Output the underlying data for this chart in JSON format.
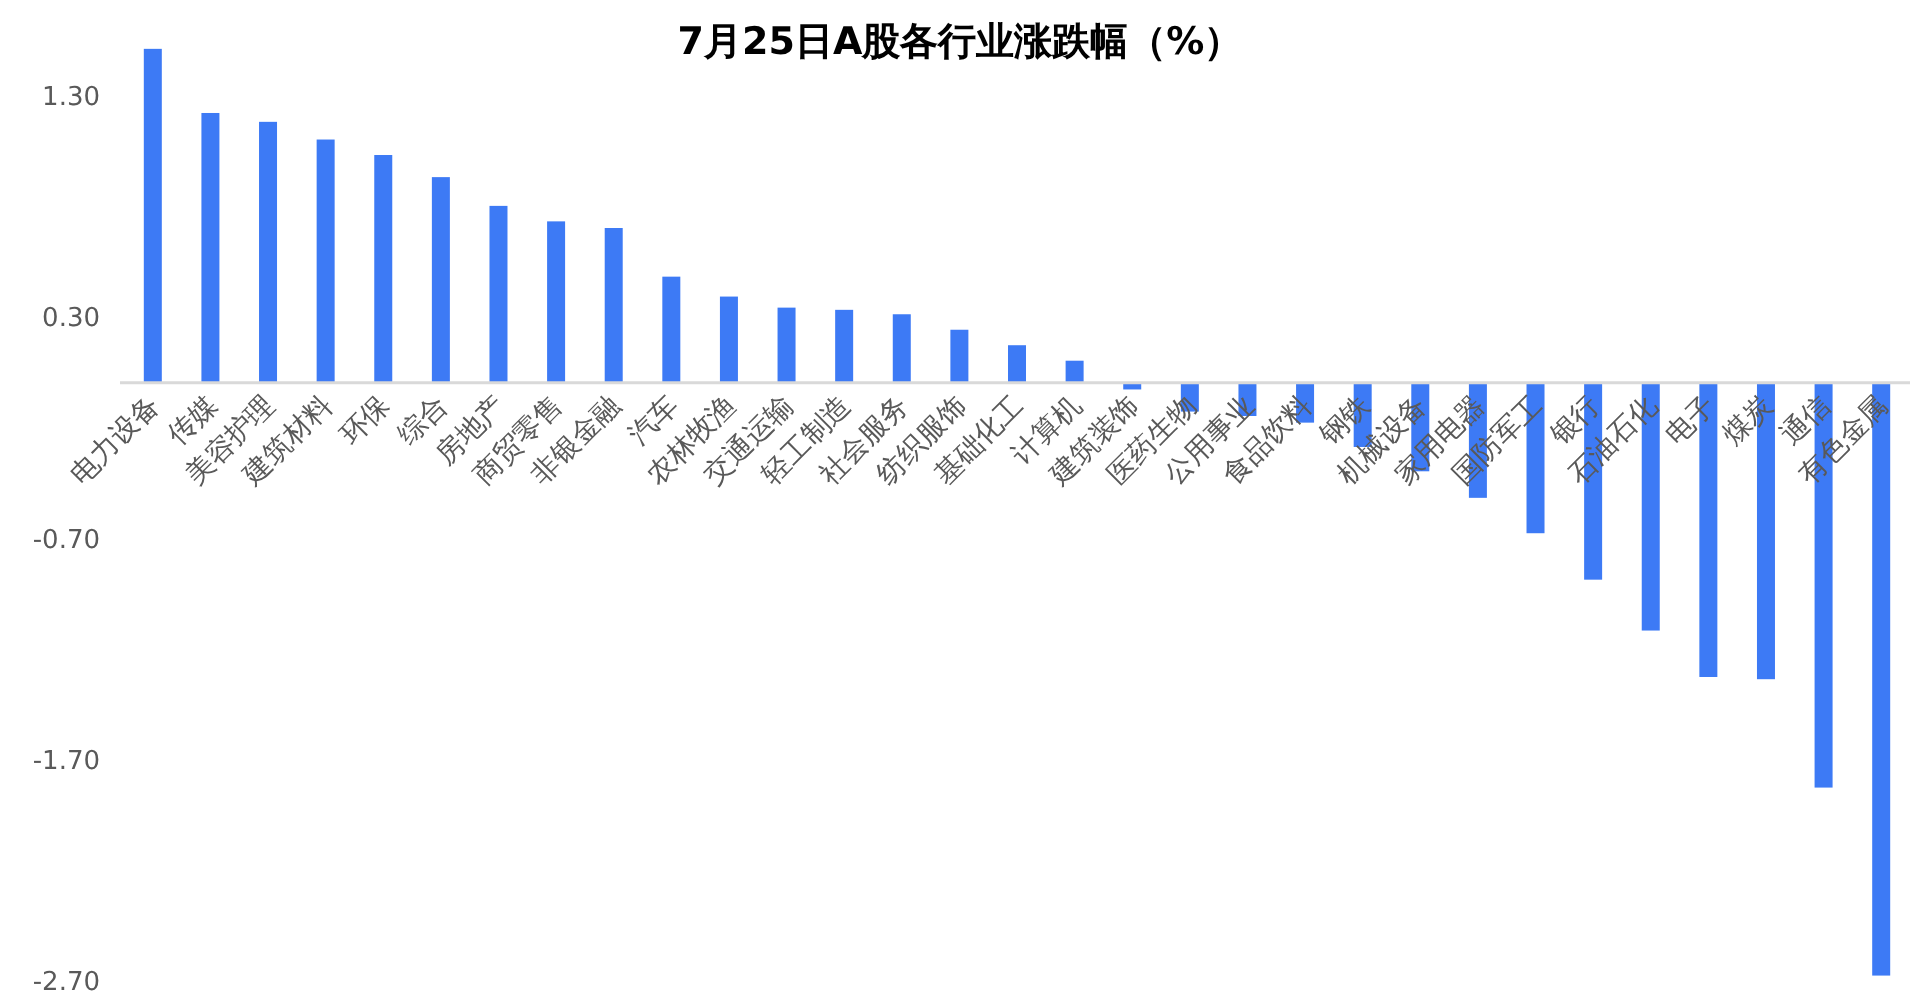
{
  "chart_data": {
    "type": "bar",
    "title": "7月25日A股各行业涨跌幅（%）",
    "categories": [
      "电力设备",
      "传媒",
      "美容护理",
      "建筑材料",
      "环保",
      "综合",
      "房地产",
      "商贸零售",
      "非银金融",
      "汽车",
      "农林牧渔",
      "交通运输",
      "轻工制造",
      "社会服务",
      "纺织服饰",
      "基础化工",
      "计算机",
      "建筑装饰",
      "医药生物",
      "公用事业",
      "食品饮料",
      "钢铁",
      "机械设备",
      "家用电器",
      "国防军工",
      "银行",
      "石油石化",
      "电子",
      "煤炭",
      "通信",
      "有色金属"
    ],
    "values": [
      1.51,
      1.22,
      1.18,
      1.1,
      1.03,
      0.93,
      0.8,
      0.73,
      0.7,
      0.48,
      0.39,
      0.34,
      0.33,
      0.31,
      0.24,
      0.17,
      0.1,
      -0.03,
      -0.13,
      -0.15,
      -0.18,
      -0.29,
      -0.4,
      -0.52,
      -0.68,
      -0.89,
      -1.12,
      -1.33,
      -1.34,
      -1.83,
      -2.68
    ],
    "color": "#3d7af5",
    "ylim": [
      -2.7,
      1.55
    ],
    "yticks": [
      {
        "value": 1.3,
        "label": "1.30"
      },
      {
        "value": 0.3,
        "label": "0.30"
      },
      {
        "value": -0.7,
        "label": "-0.70"
      },
      {
        "value": -1.7,
        "label": "-1.70"
      },
      {
        "value": -2.7,
        "label": "-2.70"
      }
    ]
  }
}
